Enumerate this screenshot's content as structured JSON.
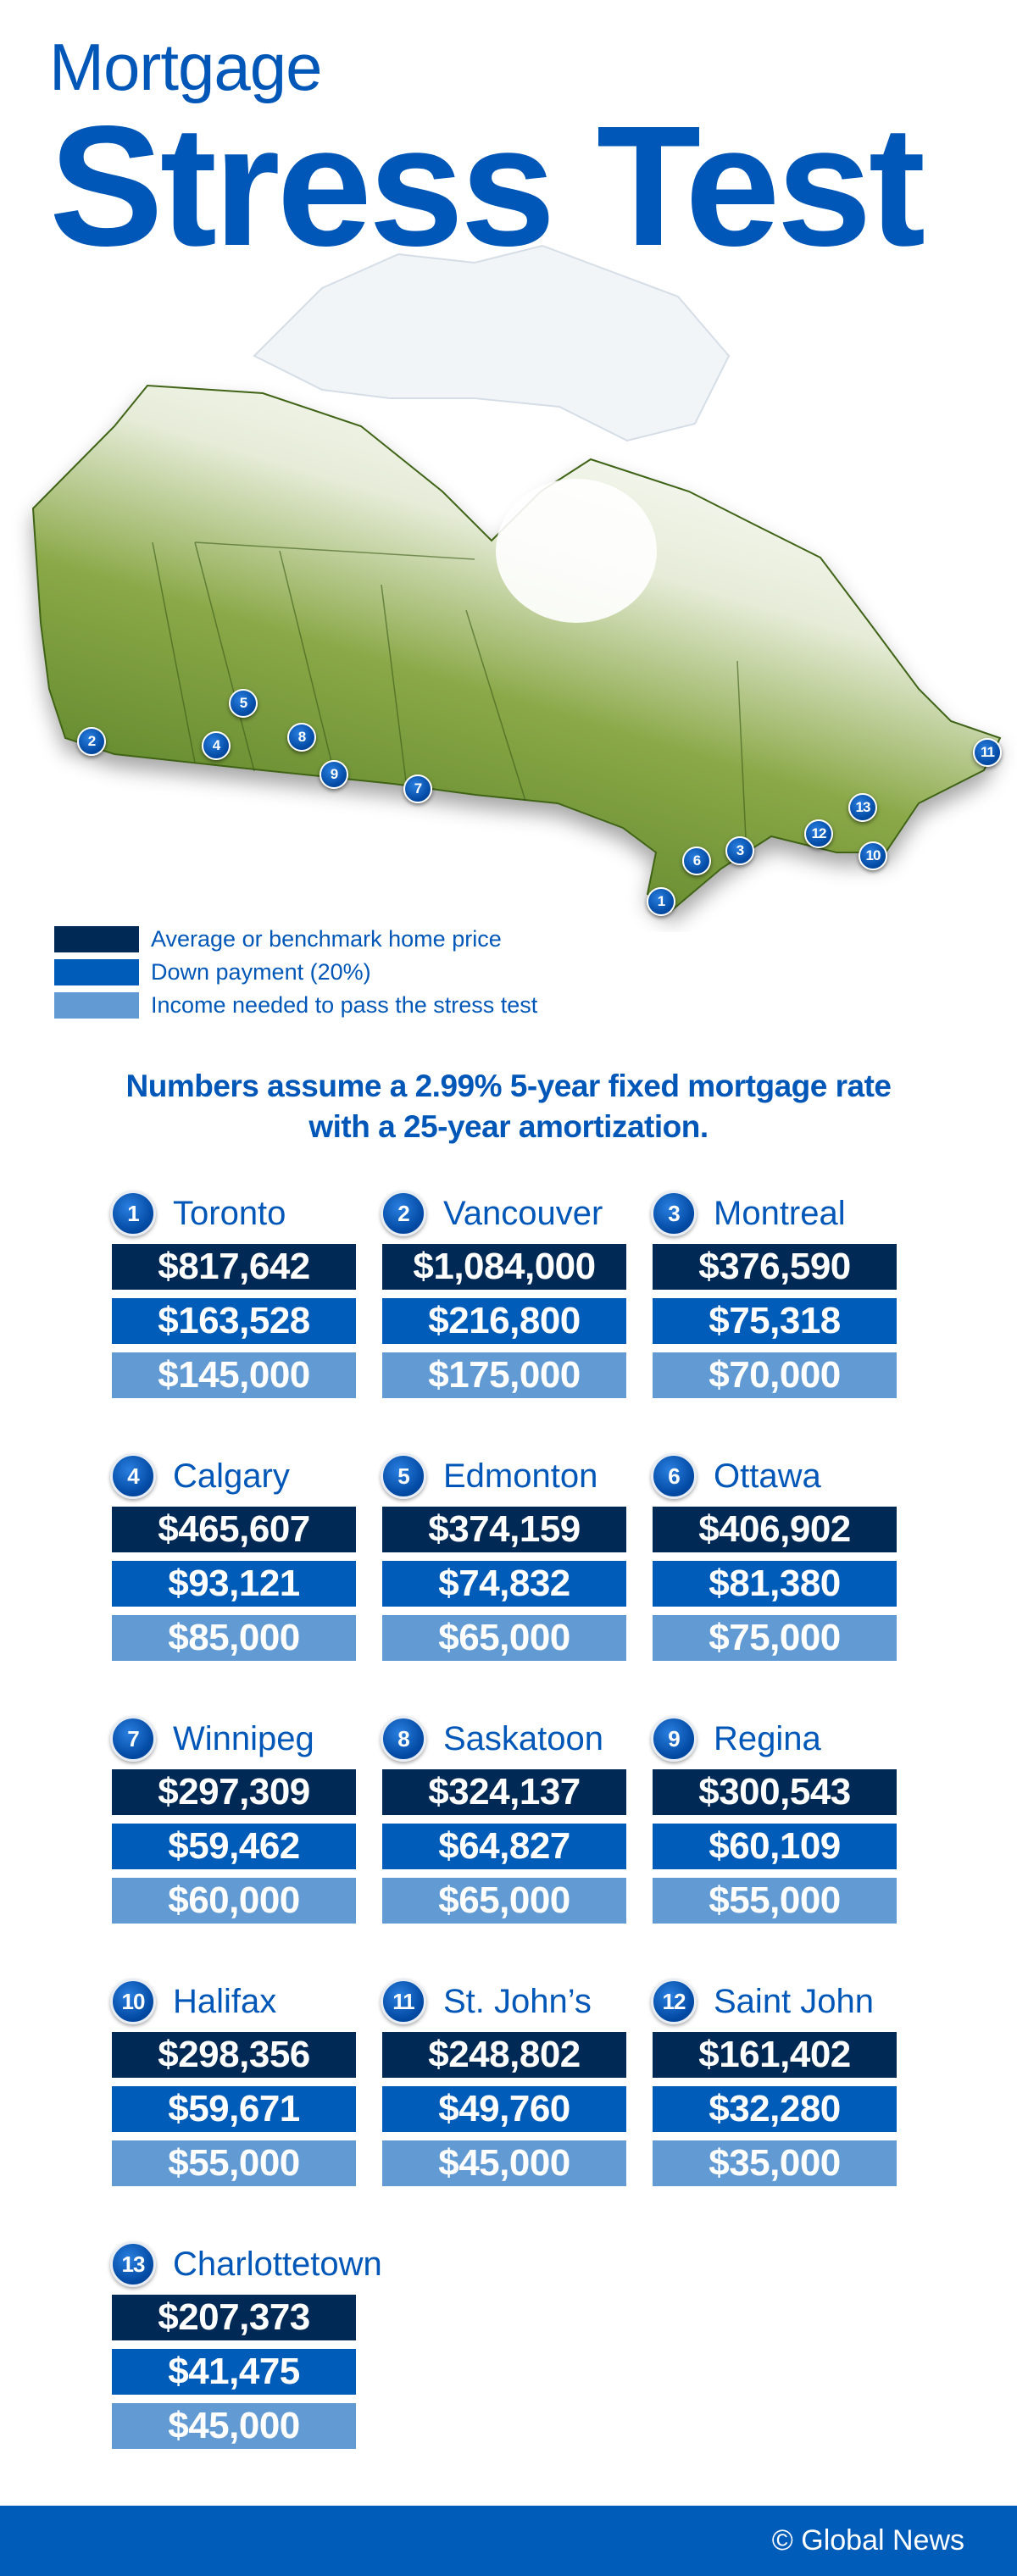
{
  "title": {
    "line1": "Mortgage",
    "line2": "Stress Test"
  },
  "colors": {
    "price": "#002a55",
    "down_payment": "#005cb9",
    "income": "#629bd3",
    "accent": "#0057b8",
    "map_green": "#5e8a2a"
  },
  "legend": [
    {
      "label": "Average or benchmark home price",
      "color": "#002a55"
    },
    {
      "label": "Down payment (20%)",
      "color": "#005cb9"
    },
    {
      "label": "Income needed to pass the stress test",
      "color": "#629bd3"
    }
  ],
  "note": {
    "line1": "Numbers assume a 2.99% 5-year fixed mortgage rate",
    "line2": "with a 25-year amortization."
  },
  "chart_data": {
    "type": "table",
    "columns": [
      "Average or benchmark home price",
      "Down payment (20%)",
      "Income needed to pass the stress test"
    ],
    "rows": [
      {
        "rank": "1",
        "city": "Toronto",
        "price": "$817,642",
        "down": "$163,528",
        "income": "$145,000"
      },
      {
        "rank": "2",
        "city": "Vancouver",
        "price": "$1,084,000",
        "down": "$216,800",
        "income": "$175,000"
      },
      {
        "rank": "3",
        "city": "Montreal",
        "price": "$376,590",
        "down": "$75,318",
        "income": "$70,000"
      },
      {
        "rank": "4",
        "city": "Calgary",
        "price": "$465,607",
        "down": "$93,121",
        "income": "$85,000"
      },
      {
        "rank": "5",
        "city": "Edmonton",
        "price": "$374,159",
        "down": "$74,832",
        "income": "$65,000"
      },
      {
        "rank": "6",
        "city": "Ottawa",
        "price": "$406,902",
        "down": "$81,380",
        "income": "$75,000"
      },
      {
        "rank": "7",
        "city": "Winnipeg",
        "price": "$297,309",
        "down": "$59,462",
        "income": "$60,000"
      },
      {
        "rank": "8",
        "city": "Saskatoon",
        "price": "$324,137",
        "down": "$64,827",
        "income": "$65,000"
      },
      {
        "rank": "9",
        "city": "Regina",
        "price": "$300,543",
        "down": "$60,109",
        "income": "$55,000"
      },
      {
        "rank": "10",
        "city": "Halifax",
        "price": "$298,356",
        "down": "$59,671",
        "income": "$55,000"
      },
      {
        "rank": "11",
        "city": "St. John’s",
        "price": "$248,802",
        "down": "$49,760",
        "income": "$45,000"
      },
      {
        "rank": "12",
        "city": "Saint John",
        "price": "$161,402",
        "down": "$32,280",
        "income": "$35,000"
      },
      {
        "rank": "13",
        "city": "Charlottetown",
        "price": "$207,373",
        "down": "$41,475",
        "income": "$45,000"
      }
    ]
  },
  "footer": {
    "credit": "© Global News"
  }
}
